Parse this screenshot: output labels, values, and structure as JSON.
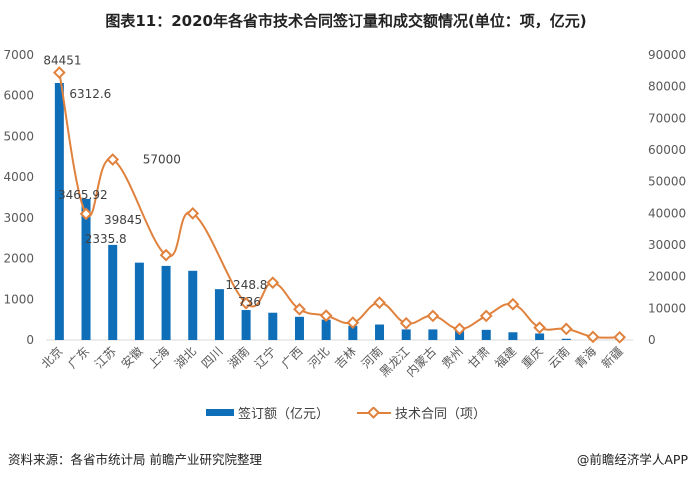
{
  "chart_data": {
    "type": "bar+line",
    "title": "图表11：2020年各省市技术合同签订量和成交额情况(单位：项，亿元)",
    "categories": [
      "北京",
      "广东",
      "江苏",
      "安徽",
      "上海",
      "湖北",
      "四川",
      "湖南",
      "辽宁",
      "广西",
      "河北",
      "吉林",
      "河南",
      "黑龙江",
      "内蒙古",
      "贵州",
      "甘肃",
      "福建",
      "重庆",
      "云南",
      "青海",
      "新疆"
    ],
    "series": [
      {
        "name": "签订额（亿元）",
        "type": "bar",
        "axis": "left",
        "color": "#0e6eb8",
        "values": [
          6312.6,
          3465.92,
          2335.8,
          1900,
          1820,
          1700,
          1248.8,
          736,
          670,
          570,
          500,
          350,
          380,
          260,
          260,
          250,
          250,
          190,
          160,
          30,
          5,
          5
        ],
        "data_labels": {
          "0": "6312.6",
          "1": "3465.92",
          "2": "2335.8",
          "6": "1248.8",
          "7": "736"
        }
      },
      {
        "name": "技术合同（项）",
        "type": "line",
        "axis": "right",
        "color": "#e0823d",
        "smooth": true,
        "values": [
          84451,
          39845,
          57000,
          null,
          26800,
          40000,
          null,
          11600,
          18100,
          9700,
          7700,
          5500,
          11800,
          5300,
          7600,
          3500,
          7600,
          11300,
          3900,
          3500,
          1000,
          850
        ],
        "data_labels": {
          "0": "84451",
          "1": "39845",
          "2": "57000"
        }
      }
    ],
    "left_axis": {
      "ylim": [
        0,
        7000
      ],
      "ticks": [
        "0",
        "1000",
        "2000",
        "3000",
        "4000",
        "5000",
        "6000",
        "7000"
      ]
    },
    "right_axis": {
      "ylim": [
        0,
        90000
      ],
      "ticks": [
        "0",
        "10000",
        "20000",
        "30000",
        "40000",
        "50000",
        "60000",
        "70000",
        "80000",
        "90000"
      ]
    },
    "grid": false,
    "legend": "bottom"
  },
  "footer": {
    "source": "资料来源：各省市统计局 前瞻产业研究院整理",
    "credit": "@前瞻经济学人APP"
  }
}
